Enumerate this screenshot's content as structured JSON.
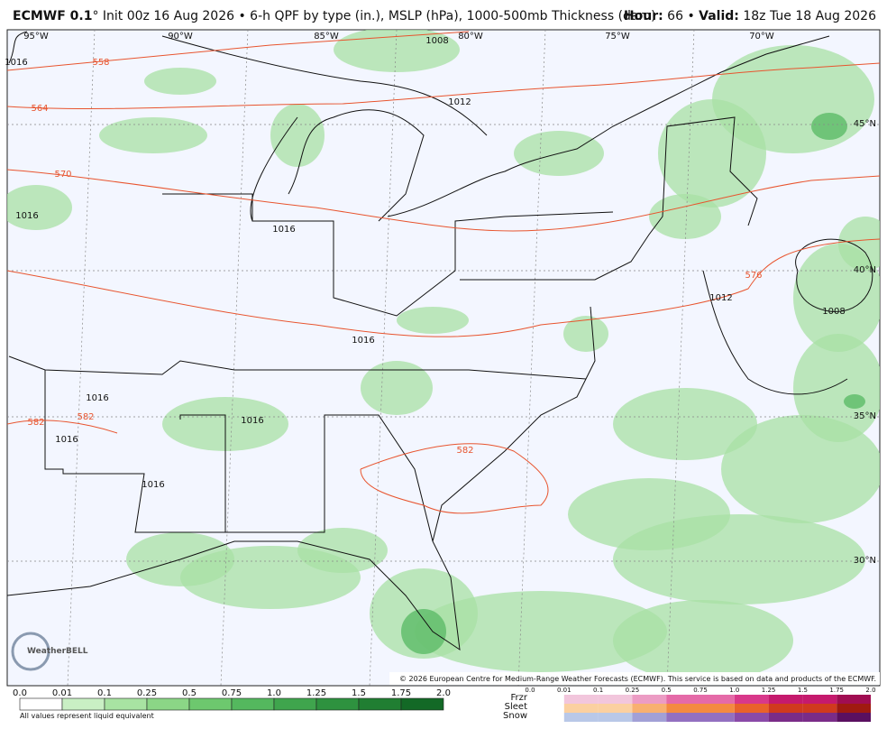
{
  "header": {
    "model": "ECMWF 0.1",
    "description": "° Init 00z 16 Aug 2026 • 6-h QPF by type (in.), MSLP (hPa), 1000-500mb Thickness (dam)",
    "hour_label": "Hour:",
    "hour": "66",
    "separator": "•",
    "valid_label": "Valid:",
    "valid": "18z Tue 18 Aug 2026"
  },
  "map": {
    "longitudes": [
      "95°W",
      "90°W",
      "85°W",
      "80°W",
      "75°W",
      "70°W"
    ],
    "latitudes": [
      "45°N",
      "40°N",
      "35°N",
      "30°N"
    ],
    "thickness_labels": [
      "558",
      "564",
      "570",
      "576",
      "582",
      "582",
      "582"
    ],
    "pressure_labels": [
      "1016",
      "1016",
      "1016",
      "1016",
      "1016",
      "1016",
      "1016",
      "1016",
      "1008",
      "1008",
      "1012",
      "1012"
    ],
    "logo": "WeatherBELL",
    "copyright": "© 2026 European Centre for Medium-Range Weather Forecasts (ECMWF). This service is based on data and products of the ECMWF."
  },
  "legend": {
    "qpf_labels": [
      "0.0",
      "0.01",
      "0.1",
      "0.25",
      "0.5",
      "0.75",
      "1.0",
      "1.25",
      "1.5",
      "1.75",
      "2.0"
    ],
    "note": "All values represent liquid equivalent",
    "types": [
      "Frzr",
      "Sleet",
      "Snow"
    ],
    "type_labels": [
      "0.0",
      "0.01",
      "0.1",
      "0.25",
      "0.5",
      "0.75",
      "1.0",
      "1.25",
      "1.5",
      "1.75",
      "2.0"
    ]
  }
}
